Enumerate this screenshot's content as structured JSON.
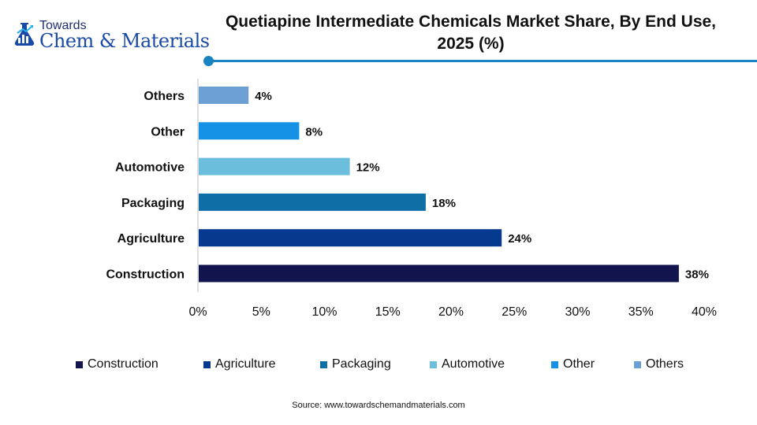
{
  "brand": {
    "top": "Towards",
    "main": "Chem & Materials"
  },
  "chart_data": {
    "type": "bar",
    "orientation": "horizontal",
    "title": "Quetiapine Intermediate Chemicals Market Share, By End Use, 2025 (%)",
    "categories": [
      "Others",
      "Other",
      "Automotive",
      "Packaging",
      "Agriculture",
      "Construction"
    ],
    "values": [
      4,
      8,
      12,
      18,
      24,
      38
    ],
    "value_labels": [
      "4%",
      "8%",
      "12%",
      "18%",
      "24%",
      "38%"
    ],
    "colors": [
      "#6c9fd3",
      "#1592e6",
      "#6bbfdd",
      "#0e6ea6",
      "#053a8e",
      "#12154d"
    ],
    "xlim": [
      0,
      40
    ],
    "xticks": [
      0,
      5,
      10,
      15,
      20,
      25,
      30,
      35,
      40
    ],
    "xtick_labels": [
      "0%",
      "5%",
      "10%",
      "15%",
      "20%",
      "25%",
      "30%",
      "35%",
      "40%"
    ],
    "grid": false,
    "legend_position": "bottom",
    "legend": [
      {
        "label": "Construction",
        "color": "#12154d"
      },
      {
        "label": "Agriculture",
        "color": "#053a8e"
      },
      {
        "label": "Packaging",
        "color": "#0e6ea6"
      },
      {
        "label": "Automotive",
        "color": "#6bbfdd"
      },
      {
        "label": "Other",
        "color": "#1592e6"
      },
      {
        "label": "Others",
        "color": "#6c9fd3"
      }
    ]
  },
  "source": "Source: www.towardschemandmaterials.com"
}
